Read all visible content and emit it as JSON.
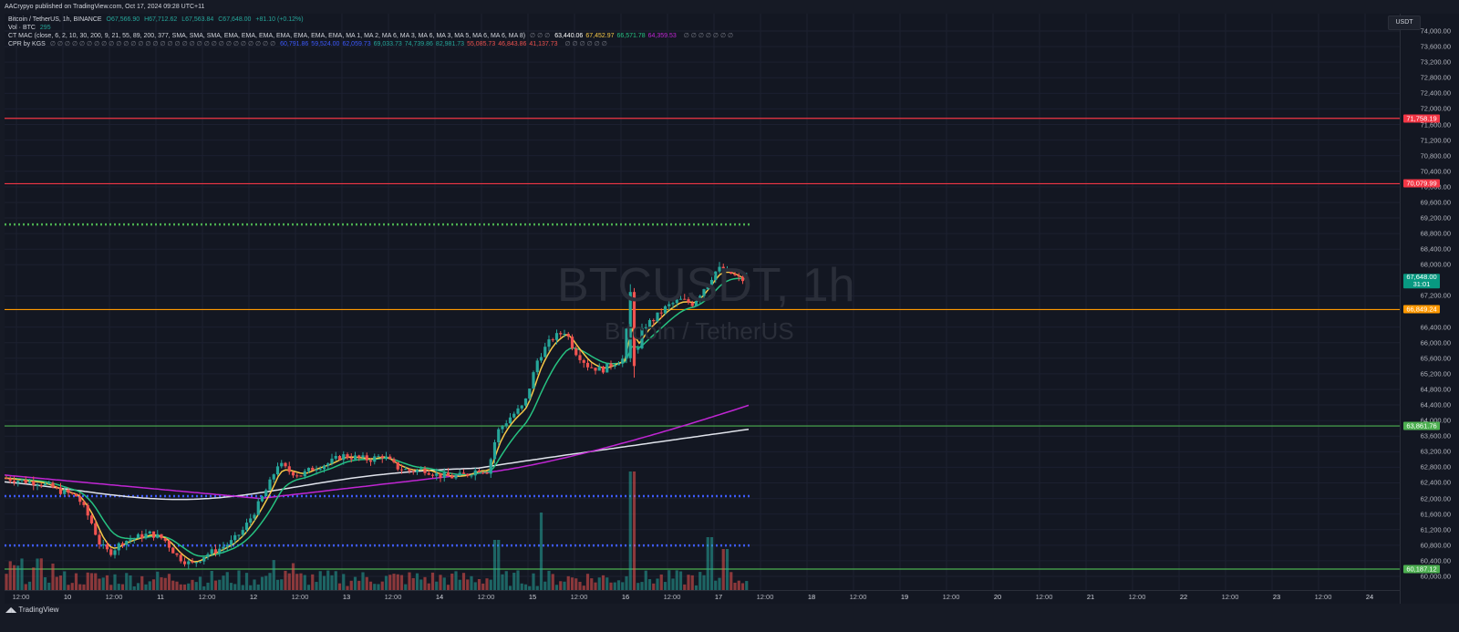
{
  "header": {
    "publisher": "AACrypyo published on TradingView.com, Oct 17, 2024 09:28 UTC+11"
  },
  "legend": {
    "symbol": "Bitcoin / TetherUS, 1h, BINANCE",
    "ohlc": [
      "O67,566.90",
      "H67,712.62",
      "L67,563.84",
      "C67,648.00",
      "+81.10 (+0.12%)"
    ],
    "vol_label": "Vol · BTC",
    "vol_value": "295",
    "ma_label": "CT MAC (close, 6, 2, 10, 30, 200, 9, 21, 55, 89, 200, 377, SMA, SMA, SMA, EMA, EMA, EMA, EMA, EMA, EMA, EMA, MA 1, MA 2, MA 6, MA 3, MA 6, MA 3, MA 5, MA 6, MA 6, MA 8)",
    "ma_symbols": "∅ ∅ ∅",
    "ma_values": [
      {
        "text": "63,440.06",
        "color": "#ffffff"
      },
      {
        "text": "67,452.97",
        "color": "#f7c948"
      },
      {
        "text": "66,571.78",
        "color": "#26c281"
      },
      {
        "text": "64,359.53",
        "color": "#c026d3"
      }
    ],
    "ma_tail": "∅ ∅ ∅ ∅ ∅ ∅ ∅",
    "cpr_label": "CPR by KGS",
    "cpr_symbols": "∅ ∅ ∅ ∅ ∅ ∅ ∅ ∅ ∅ ∅ ∅ ∅ ∅ ∅ ∅ ∅ ∅ ∅ ∅ ∅ ∅ ∅ ∅ ∅ ∅ ∅ ∅ ∅ ∅ ∅ ∅",
    "cpr_values": [
      {
        "text": "60,791.86",
        "color": "#3d5afe"
      },
      {
        "text": "59,524.00",
        "color": "#3d5afe"
      },
      {
        "text": "62,059.73",
        "color": "#3d5afe"
      },
      {
        "text": "69,033.73",
        "color": "#26a69a"
      },
      {
        "text": "74,739.86",
        "color": "#26a69a"
      },
      {
        "text": "82,981.73",
        "color": "#26a69a"
      },
      {
        "text": "55,085.73",
        "color": "#ef5350"
      },
      {
        "text": "46,843.86",
        "color": "#ef5350"
      },
      {
        "text": "41,137.73",
        "color": "#ef5350"
      }
    ],
    "cpr_tail": "∅ ∅ ∅ ∅ ∅ ∅"
  },
  "watermark": {
    "title": "BTCUSDT, 1h",
    "subtitle": "Bitcoin / TetherUS"
  },
  "currency_button": "USDT",
  "yaxis": {
    "ticks": [
      "74,000.00",
      "73,600.00",
      "73,200.00",
      "72,800.00",
      "72,400.00",
      "72,000.00",
      "71,600.00",
      "71,200.00",
      "70,800.00",
      "70,400.00",
      "70,000.00",
      "69,600.00",
      "69,200.00",
      "68,800.00",
      "68,400.00",
      "68,000.00",
      "67,200.00",
      "66,400.00",
      "66,000.00",
      "65,600.00",
      "65,200.00",
      "64,800.00",
      "64,400.00",
      "64,000.00",
      "63,600.00",
      "63,200.00",
      "62,800.00",
      "62,400.00",
      "62,000.00",
      "61,600.00",
      "61,200.00",
      "60,800.00",
      "60,400.00",
      "60,000.00"
    ],
    "badges": [
      {
        "label": "71,758.19",
        "value": 71758.19,
        "color": "#f23645"
      },
      {
        "label": "70,079.99",
        "value": 70079.99,
        "color": "#f23645"
      },
      {
        "label": "67,648.00",
        "value": 67648.0,
        "color": "#089981",
        "sub": "31:01"
      },
      {
        "label": "66,849.24",
        "value": 66849.24,
        "color": "#ff9800"
      },
      {
        "label": "63,861.76",
        "value": 63861.76,
        "color": "#4caf50"
      },
      {
        "label": "60,187.12",
        "value": 60187.12,
        "color": "#4caf50"
      }
    ]
  },
  "xaxis": {
    "ticks": [
      "12:00",
      "10",
      "12:00",
      "11",
      "12:00",
      "12",
      "12:00",
      "13",
      "12:00",
      "14",
      "12:00",
      "15",
      "12:00",
      "16",
      "12:00",
      "17",
      "12:00",
      "18",
      "12:00",
      "19",
      "12:00",
      "20",
      "12:00",
      "21",
      "12:00",
      "22",
      "12:00",
      "23",
      "12:00",
      "24"
    ]
  },
  "footer": {
    "logo": "TradingView"
  },
  "colors": {
    "up": "#26a69a",
    "down": "#ef5350",
    "ma_yellow": "#f7c948",
    "ma_green": "#26c281",
    "ma_magenta": "#c026d3",
    "ma_white": "#e0e3eb",
    "level_red": "#f23645",
    "level_orange": "#ff9800",
    "level_green": "#4caf50",
    "cpr_blue": "#3d5afe",
    "cpr_green": "#4caf50"
  },
  "chart_data": {
    "type": "candlestick",
    "series_shape": "BTCUSDT 1h, Oct 9 – Oct 17 2024",
    "horizontal_levels": [
      71758.19,
      70079.99,
      66849.24,
      63861.76,
      60187.12
    ],
    "dotted_levels": [
      {
        "value": 69033.73,
        "color": "#4caf50"
      },
      {
        "value": 62059.73,
        "color": "#3d5afe"
      },
      {
        "value": 60791.86,
        "color": "#3d5afe"
      }
    ],
    "ylim": [
      59900,
      74100
    ],
    "last_close": 67648.0
  }
}
